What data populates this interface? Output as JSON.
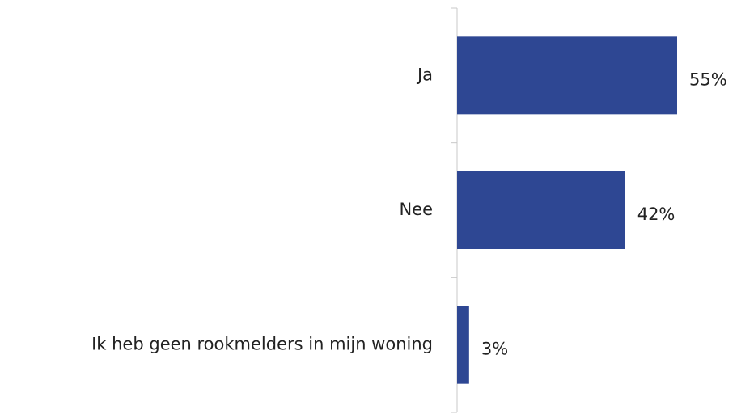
{
  "chart_data": {
    "type": "barh",
    "categories": [
      "Ja",
      "Nee",
      "Ik heb geen rookmelders in mijn woning"
    ],
    "values": [
      55,
      42,
      3
    ],
    "value_labels": [
      "55%",
      "42%",
      "3%"
    ],
    "color": "#2e4793"
  }
}
